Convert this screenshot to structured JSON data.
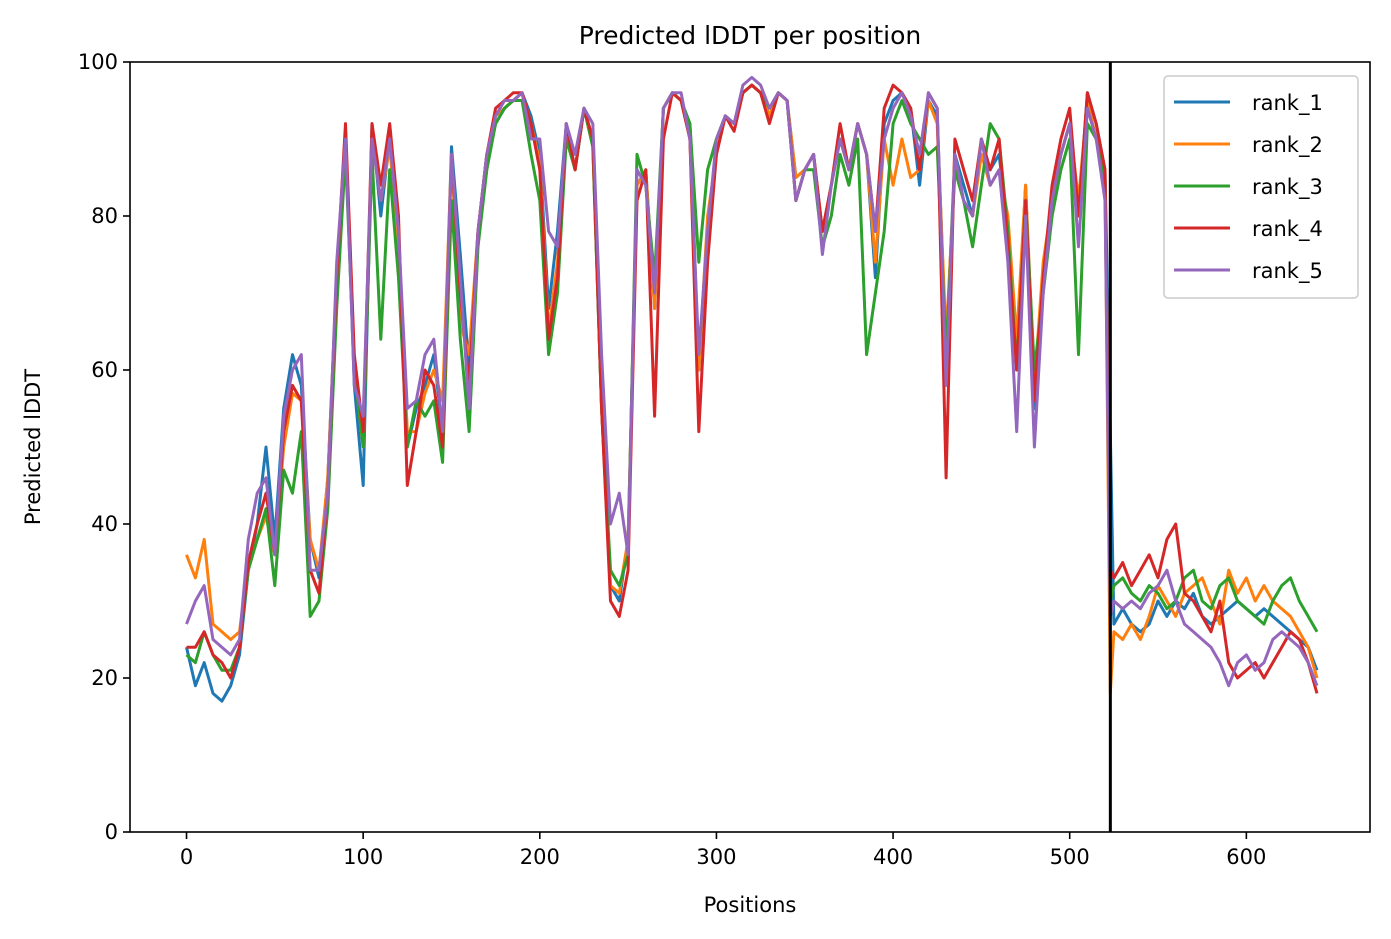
{
  "chart_data": {
    "type": "line",
    "title": "Predicted lDDT per position",
    "xlabel": "Positions",
    "ylabel": "Predicted lDDT",
    "xlim": [
      -32,
      670
    ],
    "ylim": [
      0,
      100
    ],
    "xticks": [
      0,
      100,
      200,
      300,
      400,
      500,
      600
    ],
    "yticks": [
      0,
      20,
      40,
      60,
      80,
      100
    ],
    "grid": false,
    "legend": "top-right",
    "vline": 523,
    "series": [
      {
        "name": "rank_1",
        "color": "#1f77b4",
        "x": [
          0,
          5,
          10,
          15,
          20,
          25,
          30,
          35,
          40,
          45,
          50,
          55,
          60,
          65,
          70,
          75,
          80,
          85,
          90,
          95,
          100,
          105,
          110,
          115,
          120,
          125,
          130,
          135,
          140,
          145,
          150,
          155,
          160,
          165,
          170,
          175,
          180,
          185,
          190,
          195,
          200,
          205,
          210,
          215,
          220,
          225,
          230,
          235,
          240,
          245,
          250,
          255,
          260,
          265,
          270,
          275,
          280,
          285,
          290,
          295,
          300,
          305,
          310,
          315,
          320,
          325,
          330,
          335,
          340,
          345,
          350,
          355,
          360,
          365,
          370,
          375,
          380,
          385,
          390,
          395,
          400,
          405,
          410,
          415,
          420,
          425,
          430,
          435,
          440,
          445,
          450,
          455,
          460,
          465,
          470,
          475,
          480,
          485,
          490,
          495,
          500,
          505,
          510,
          515,
          520,
          523,
          525,
          530,
          535,
          540,
          545,
          550,
          555,
          560,
          565,
          570,
          575,
          580,
          585,
          590,
          595,
          600,
          605,
          610,
          615,
          620,
          625,
          630,
          635,
          640
        ],
        "y": [
          24,
          19,
          22,
          18,
          17,
          19,
          23,
          34,
          40,
          50,
          38,
          55,
          62,
          58,
          38,
          33,
          46,
          72,
          91,
          58,
          45,
          92,
          80,
          90,
          78,
          50,
          55,
          58,
          62,
          52,
          89,
          75,
          60,
          78,
          88,
          92,
          94,
          95,
          96,
          93,
          88,
          68,
          78,
          92,
          86,
          94,
          90,
          55,
          32,
          30,
          38,
          84,
          86,
          68,
          94,
          96,
          95,
          92,
          60,
          78,
          88,
          93,
          92,
          96,
          97,
          96,
          93,
          96,
          95,
          85,
          86,
          88,
          78,
          84,
          90,
          86,
          92,
          88,
          72,
          92,
          95,
          96,
          94,
          84,
          95,
          93,
          62,
          88,
          84,
          80,
          90,
          86,
          88,
          78,
          62,
          84,
          55,
          72,
          82,
          88,
          92,
          80,
          96,
          92,
          86,
          52,
          27,
          29,
          27,
          26,
          27,
          30,
          28,
          30,
          29,
          31,
          28,
          27,
          28,
          29,
          30,
          29,
          28,
          29,
          28,
          27,
          26,
          25,
          24,
          21
        ]
      },
      {
        "name": "rank_2",
        "color": "#ff7f0e",
        "x": [
          0,
          5,
          10,
          15,
          20,
          25,
          30,
          35,
          40,
          45,
          50,
          55,
          60,
          65,
          70,
          75,
          80,
          85,
          90,
          95,
          100,
          105,
          110,
          115,
          120,
          125,
          130,
          135,
          140,
          145,
          150,
          155,
          160,
          165,
          170,
          175,
          180,
          185,
          190,
          195,
          200,
          205,
          210,
          215,
          220,
          225,
          230,
          235,
          240,
          245,
          250,
          255,
          260,
          265,
          270,
          275,
          280,
          285,
          290,
          295,
          300,
          305,
          310,
          315,
          320,
          325,
          330,
          335,
          340,
          345,
          350,
          355,
          360,
          365,
          370,
          375,
          380,
          385,
          390,
          395,
          400,
          405,
          410,
          415,
          420,
          425,
          430,
          435,
          440,
          445,
          450,
          455,
          460,
          465,
          470,
          475,
          480,
          485,
          490,
          495,
          500,
          505,
          510,
          515,
          520,
          523,
          525,
          530,
          535,
          540,
          545,
          550,
          555,
          560,
          565,
          570,
          575,
          580,
          585,
          590,
          595,
          600,
          605,
          610,
          615,
          620,
          625,
          630,
          635,
          640
        ],
        "y": [
          36,
          33,
          38,
          27,
          26,
          25,
          26,
          35,
          38,
          41,
          36,
          50,
          57,
          56,
          38,
          34,
          46,
          72,
          90,
          60,
          50,
          90,
          82,
          89,
          76,
          52,
          52,
          57,
          60,
          56,
          88,
          66,
          62,
          78,
          88,
          93,
          94,
          95,
          96,
          92,
          87,
          65,
          74,
          91,
          86,
          94,
          89,
          55,
          32,
          31,
          38,
          84,
          86,
          68,
          94,
          96,
          95,
          90,
          60,
          80,
          88,
          93,
          92,
          96,
          97,
          96,
          93,
          96,
          95,
          85,
          86,
          88,
          78,
          84,
          90,
          86,
          92,
          88,
          74,
          90,
          84,
          90,
          85,
          86,
          95,
          92,
          64,
          86,
          82,
          80,
          88,
          84,
          86,
          80,
          64,
          84,
          58,
          74,
          82,
          88,
          92,
          82,
          95,
          90,
          85,
          18,
          26,
          25,
          27,
          25,
          28,
          32,
          30,
          28,
          31,
          32,
          33,
          30,
          27,
          34,
          31,
          33,
          30,
          32,
          30,
          29,
          28,
          26,
          24,
          20
        ]
      },
      {
        "name": "rank_3",
        "color": "#2ca02c",
        "x": [
          0,
          5,
          10,
          15,
          20,
          25,
          30,
          35,
          40,
          45,
          50,
          55,
          60,
          65,
          70,
          75,
          80,
          85,
          90,
          95,
          100,
          105,
          110,
          115,
          120,
          125,
          130,
          135,
          140,
          145,
          150,
          155,
          160,
          165,
          170,
          175,
          180,
          185,
          190,
          195,
          200,
          205,
          210,
          215,
          220,
          225,
          230,
          235,
          240,
          245,
          250,
          255,
          260,
          265,
          270,
          275,
          280,
          285,
          290,
          295,
          300,
          305,
          310,
          315,
          320,
          325,
          330,
          335,
          340,
          345,
          350,
          355,
          360,
          365,
          370,
          375,
          380,
          385,
          390,
          395,
          400,
          405,
          410,
          415,
          420,
          425,
          430,
          435,
          440,
          445,
          450,
          455,
          460,
          465,
          470,
          475,
          480,
          485,
          490,
          495,
          500,
          505,
          510,
          515,
          520,
          523,
          525,
          530,
          535,
          540,
          545,
          550,
          555,
          560,
          565,
          570,
          575,
          580,
          585,
          590,
          595,
          600,
          605,
          610,
          615,
          620,
          625,
          630,
          635,
          640
        ],
        "y": [
          23,
          22,
          26,
          23,
          21,
          21,
          24,
          34,
          38,
          42,
          32,
          47,
          44,
          52,
          28,
          30,
          42,
          68,
          88,
          60,
          50,
          88,
          64,
          86,
          72,
          50,
          56,
          54,
          56,
          48,
          82,
          64,
          52,
          76,
          86,
          92,
          94,
          95,
          95,
          88,
          82,
          62,
          70,
          90,
          86,
          94,
          89,
          55,
          34,
          32,
          36,
          88,
          84,
          72,
          94,
          96,
          95,
          92,
          74,
          86,
          90,
          93,
          92,
          96,
          97,
          96,
          94,
          96,
          95,
          82,
          86,
          86,
          76,
          80,
          88,
          84,
          90,
          62,
          70,
          78,
          92,
          95,
          92,
          90,
          88,
          89,
          62,
          86,
          82,
          76,
          84,
          92,
          90,
          78,
          60,
          82,
          60,
          70,
          80,
          86,
          90,
          62,
          92,
          90,
          84,
          30,
          32,
          33,
          31,
          30,
          32,
          31,
          29,
          30,
          33,
          34,
          30,
          29,
          32,
          33,
          30,
          29,
          28,
          27,
          30,
          32,
          33,
          30,
          28,
          26
        ]
      },
      {
        "name": "rank_4",
        "color": "#d62728",
        "x": [
          0,
          5,
          10,
          15,
          20,
          25,
          30,
          35,
          40,
          45,
          50,
          55,
          60,
          65,
          70,
          75,
          80,
          85,
          90,
          95,
          100,
          105,
          110,
          115,
          120,
          125,
          130,
          135,
          140,
          145,
          150,
          155,
          160,
          165,
          170,
          175,
          180,
          185,
          190,
          195,
          200,
          205,
          210,
          215,
          220,
          225,
          230,
          235,
          240,
          245,
          250,
          255,
          260,
          265,
          270,
          275,
          280,
          285,
          290,
          295,
          300,
          305,
          310,
          315,
          320,
          325,
          330,
          335,
          340,
          345,
          350,
          355,
          360,
          365,
          370,
          375,
          380,
          385,
          390,
          395,
          400,
          405,
          410,
          415,
          420,
          425,
          430,
          435,
          440,
          445,
          450,
          455,
          460,
          465,
          470,
          475,
          480,
          485,
          490,
          495,
          500,
          505,
          510,
          515,
          520,
          523,
          525,
          530,
          535,
          540,
          545,
          550,
          555,
          560,
          565,
          570,
          575,
          580,
          585,
          590,
          595,
          600,
          605,
          610,
          615,
          620,
          625,
          630,
          635,
          640
        ],
        "y": [
          24,
          24,
          26,
          23,
          22,
          20,
          24,
          35,
          40,
          44,
          36,
          52,
          58,
          56,
          34,
          31,
          44,
          72,
          92,
          62,
          52,
          92,
          84,
          92,
          80,
          45,
          52,
          60,
          58,
          50,
          88,
          70,
          58,
          78,
          88,
          94,
          95,
          96,
          96,
          92,
          86,
          64,
          72,
          92,
          86,
          94,
          90,
          55,
          30,
          28,
          34,
          82,
          86,
          54,
          90,
          96,
          95,
          90,
          52,
          74,
          88,
          93,
          91,
          96,
          97,
          96,
          92,
          96,
          95,
          82,
          86,
          88,
          78,
          84,
          92,
          86,
          92,
          88,
          78,
          94,
          97,
          96,
          94,
          86,
          96,
          94,
          46,
          90,
          86,
          82,
          90,
          86,
          90,
          76,
          60,
          82,
          56,
          72,
          84,
          90,
          94,
          80,
          96,
          92,
          86,
          34,
          33,
          35,
          32,
          34,
          36,
          33,
          38,
          40,
          31,
          30,
          28,
          26,
          30,
          22,
          20,
          21,
          22,
          20,
          22,
          24,
          26,
          25,
          22,
          18
        ]
      },
      {
        "name": "rank_5",
        "color": "#9467bd",
        "x": [
          0,
          5,
          10,
          15,
          20,
          25,
          30,
          35,
          40,
          45,
          50,
          55,
          60,
          65,
          70,
          75,
          80,
          85,
          90,
          95,
          100,
          105,
          110,
          115,
          120,
          125,
          130,
          135,
          140,
          145,
          150,
          155,
          160,
          165,
          170,
          175,
          180,
          185,
          190,
          195,
          200,
          205,
          210,
          215,
          220,
          225,
          230,
          235,
          240,
          245,
          250,
          255,
          260,
          265,
          270,
          275,
          280,
          285,
          290,
          295,
          300,
          305,
          310,
          315,
          320,
          325,
          330,
          335,
          340,
          345,
          350,
          355,
          360,
          365,
          370,
          375,
          380,
          385,
          390,
          395,
          400,
          405,
          410,
          415,
          420,
          425,
          430,
          435,
          440,
          445,
          450,
          455,
          460,
          465,
          470,
          475,
          480,
          485,
          490,
          495,
          500,
          505,
          510,
          515,
          520,
          523,
          525,
          530,
          535,
          540,
          545,
          550,
          555,
          560,
          565,
          570,
          575,
          580,
          585,
          590,
          595,
          600,
          605,
          610,
          615,
          620,
          625,
          630,
          635,
          640
        ],
        "y": [
          27,
          30,
          32,
          25,
          24,
          23,
          25,
          38,
          44,
          46,
          36,
          54,
          60,
          62,
          34,
          34,
          44,
          74,
          90,
          58,
          54,
          90,
          82,
          90,
          78,
          55,
          56,
          62,
          64,
          52,
          88,
          72,
          55,
          78,
          88,
          93,
          95,
          95,
          96,
          90,
          90,
          78,
          76,
          92,
          88,
          94,
          92,
          62,
          40,
          44,
          36,
          86,
          84,
          70,
          94,
          96,
          96,
          90,
          62,
          78,
          90,
          93,
          92,
          97,
          98,
          97,
          94,
          96,
          95,
          82,
          86,
          88,
          75,
          84,
          90,
          86,
          92,
          88,
          78,
          90,
          94,
          96,
          93,
          88,
          96,
          94,
          58,
          88,
          82,
          80,
          90,
          84,
          86,
          74,
          52,
          80,
          50,
          70,
          82,
          88,
          92,
          76,
          94,
          90,
          82,
          28,
          30,
          29,
          30,
          29,
          31,
          32,
          34,
          30,
          27,
          26,
          25,
          24,
          22,
          19,
          22,
          23,
          21,
          22,
          25,
          26,
          25,
          24,
          22,
          19
        ]
      }
    ]
  }
}
